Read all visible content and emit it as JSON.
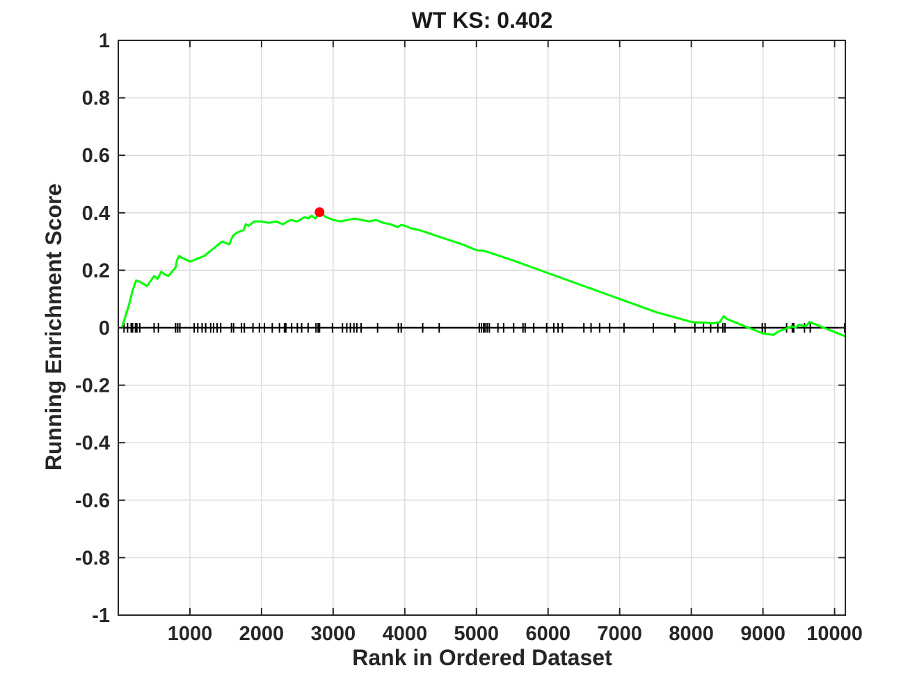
{
  "chart_data": {
    "type": "line",
    "title": "WT KS: 0.402",
    "xlabel": "Rank in Ordered Dataset",
    "ylabel": "Running Enrichment Score",
    "xlim": [
      0,
      10150
    ],
    "ylim": [
      -1,
      1
    ],
    "xticks": [
      1000,
      2000,
      3000,
      4000,
      5000,
      6000,
      7000,
      8000,
      9000,
      10000
    ],
    "xtick_labels": [
      "1000",
      "2000",
      "3000",
      "4000",
      "5000",
      "6000",
      "7000",
      "8000",
      "9000",
      "10000"
    ],
    "yticks": [
      -1,
      -0.8,
      -0.6,
      -0.4,
      -0.2,
      0,
      0.2,
      0.4,
      0.6,
      0.8,
      1
    ],
    "ytick_labels": [
      "-1",
      "-0.8",
      "-0.6",
      "-0.4",
      "-0.2",
      "0",
      "0.2",
      "0.4",
      "0.6",
      "0.8",
      "1"
    ],
    "grid": true,
    "series": [
      {
        "color": "#00ff00",
        "x": [
          50,
          100,
          150,
          200,
          250,
          300,
          400,
          500,
          550,
          600,
          650,
          700,
          800,
          820,
          850,
          880,
          1000,
          1100,
          1200,
          1300,
          1400,
          1450,
          1550,
          1600,
          1650,
          1750,
          1780,
          1820,
          1900,
          2000,
          2100,
          2200,
          2300,
          2400,
          2500,
          2600,
          2650,
          2700,
          2750,
          2810,
          2900,
          3000,
          3100,
          3200,
          3300,
          3400,
          3500,
          3600,
          3700,
          3800,
          3900,
          3950,
          4000,
          4100,
          4200,
          4500,
          4800,
          5000,
          5050,
          5100,
          5200,
          5500,
          6000,
          6500,
          7000,
          7500,
          8000,
          8100,
          8200,
          8300,
          8400,
          8450,
          8500,
          8600,
          8700,
          8800,
          8900,
          9000,
          9150,
          9200,
          9300,
          9400,
          9450,
          9500,
          9600,
          9650,
          9700,
          9800,
          9900,
          10000,
          10100,
          10150
        ],
        "y": [
          0.0,
          0.04,
          0.08,
          0.13,
          0.165,
          0.16,
          0.145,
          0.18,
          0.17,
          0.195,
          0.185,
          0.18,
          0.21,
          0.235,
          0.25,
          0.245,
          0.23,
          0.24,
          0.25,
          0.27,
          0.29,
          0.3,
          0.29,
          0.32,
          0.33,
          0.34,
          0.36,
          0.355,
          0.37,
          0.37,
          0.365,
          0.37,
          0.36,
          0.375,
          0.37,
          0.385,
          0.38,
          0.39,
          0.38,
          0.402,
          0.385,
          0.375,
          0.37,
          0.375,
          0.38,
          0.375,
          0.37,
          0.375,
          0.365,
          0.36,
          0.35,
          0.358,
          0.355,
          0.345,
          0.34,
          0.315,
          0.29,
          0.27,
          0.268,
          0.268,
          0.26,
          0.235,
          0.19,
          0.145,
          0.1,
          0.055,
          0.02,
          0.018,
          0.018,
          0.015,
          0.02,
          0.04,
          0.03,
          0.02,
          0.01,
          0.0,
          -0.01,
          -0.02,
          -0.025,
          -0.015,
          -0.005,
          0.005,
          0.0,
          0.01,
          0.005,
          0.02,
          0.015,
          0.005,
          -0.005,
          -0.015,
          -0.025,
          -0.03
        ]
      }
    ],
    "hits": [
      80,
      130,
      180,
      200,
      240,
      260,
      300,
      500,
      560,
      800,
      830,
      860,
      1060,
      1110,
      1170,
      1220,
      1290,
      1330,
      1380,
      1430,
      1580,
      1610,
      1720,
      1760,
      1880,
      1970,
      2040,
      2150,
      2250,
      2320,
      2340,
      2420,
      2500,
      2560,
      2650,
      2760,
      2790,
      2810,
      2990,
      3130,
      3190,
      3240,
      3290,
      3330,
      3390,
      3620,
      3910,
      3950,
      4250,
      4480,
      5040,
      5070,
      5100,
      5120,
      5150,
      5180,
      5300,
      5380,
      5520,
      5650,
      5680,
      5800,
      5980,
      6080,
      6140,
      6200,
      6500,
      6600,
      6720,
      6860,
      7060,
      7470,
      7770,
      8050,
      8170,
      8270,
      8370,
      8440,
      8470,
      8990,
      9030,
      9330,
      9410,
      9430,
      9580,
      9660,
      10140
    ],
    "peak": {
      "x": 2810,
      "y": 0.402,
      "color": "#ff0000"
    }
  }
}
